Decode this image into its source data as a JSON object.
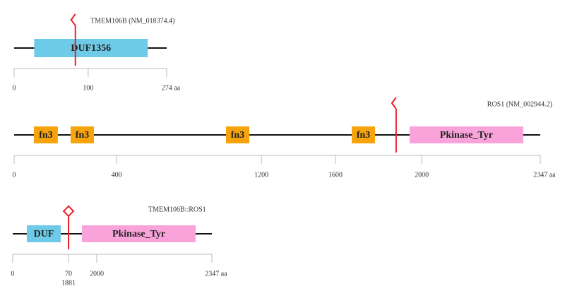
{
  "tracks": [
    {
      "title": "TMEM106B (NM_018374.4)",
      "length": 274,
      "length_label": "274 aa",
      "ticks": [
        0,
        {
          "value": 133,
          "label": "100"
        }
      ],
      "domains": [
        {
          "name": "DUF1356",
          "start": 36,
          "end": 240,
          "color": "#6ecbe8"
        }
      ],
      "breakpoint": 110,
      "breakpoint_marker": "flag"
    },
    {
      "title": "ROS1 (NM_002944.2)",
      "length": 2347,
      "length_label": "2347 aa",
      "ticks": [
        0,
        {
          "value": 457,
          "label": "400"
        },
        {
          "value": 1103,
          "label": "1200"
        },
        {
          "value": 1433,
          "label": "1600"
        },
        {
          "value": 1818,
          "label": "2000"
        }
      ],
      "domains": [
        {
          "name": "fn3",
          "start": 88,
          "end": 195,
          "color": "#f7a30c"
        },
        {
          "name": "fn3",
          "start": 252,
          "end": 356,
          "color": "#f7a30c"
        },
        {
          "name": "fn3",
          "start": 945,
          "end": 1049,
          "color": "#f7a30c"
        },
        {
          "name": "fn3",
          "start": 1506,
          "end": 1610,
          "color": "#f7a30c"
        },
        {
          "name": "Pkinase_Tyr",
          "start": 1764,
          "end": 2271,
          "color": "#f9a3da"
        }
      ],
      "breakpoint": 1704,
      "breakpoint_marker": "flag"
    },
    {
      "title": "TMEM106B::ROS1",
      "length": 2347,
      "length_label": "2347 aa",
      "ticks": [
        0,
        {
          "value": 658,
          "label": "70",
          "label2": "1881"
        },
        {
          "value": 990,
          "label": "2000"
        }
      ],
      "domains": [
        {
          "name": "DUF",
          "start": 166,
          "end": 566,
          "color": "#6ecbe8"
        },
        {
          "name": "Pkinase_Tyr",
          "start": 816,
          "end": 2156,
          "color": "#f9a3da"
        }
      ],
      "breakpoint": 658,
      "breakpoint_marker": "diamond"
    }
  ]
}
